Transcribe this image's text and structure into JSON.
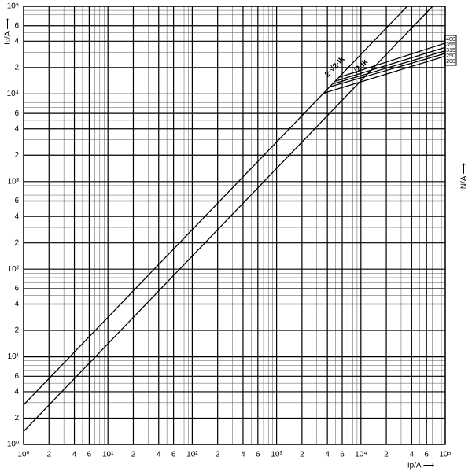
{
  "chart_data": {
    "type": "line",
    "x_label": "Ip/A ⟶",
    "y_label": "Ic/A ⟶",
    "y2_label": "IN/A ⟶",
    "log_x": true,
    "log_y": true,
    "grid": true,
    "minor_grid": true,
    "xlim": [
      1,
      100000
    ],
    "ylim": [
      1,
      100000
    ],
    "xticks": [
      {
        "value": 1,
        "label": "10⁰"
      },
      2,
      4,
      6,
      {
        "value": 10,
        "label": "10¹"
      },
      {
        "value": 20,
        "label": "2"
      },
      {
        "value": 40,
        "label": "4"
      },
      {
        "value": 60,
        "label": "6"
      },
      {
        "value": 100,
        "label": "10²"
      },
      {
        "value": 200,
        "label": "2"
      },
      {
        "value": 400,
        "label": "4"
      },
      {
        "value": 600,
        "label": "6"
      },
      {
        "value": 1000,
        "label": "10³"
      },
      {
        "value": 2000,
        "label": "2"
      },
      {
        "value": 4000,
        "label": "4"
      },
      {
        "value": 6000,
        "label": "6"
      },
      {
        "value": 10000,
        "label": "10⁴"
      },
      {
        "value": 20000,
        "label": "2"
      },
      {
        "value": 40000,
        "label": "4"
      },
      {
        "value": 60000,
        "label": "6"
      },
      {
        "value": 100000,
        "label": "10⁵"
      }
    ],
    "yticks": [
      {
        "value": 1,
        "label": "10⁰"
      },
      2,
      4,
      6,
      {
        "value": 10,
        "label": "10¹"
      },
      {
        "value": 20,
        "label": "2"
      },
      {
        "value": 40,
        "label": "4"
      },
      {
        "value": 60,
        "label": "6"
      },
      {
        "value": 100,
        "label": "10²"
      },
      {
        "value": 200,
        "label": "2"
      },
      {
        "value": 400,
        "label": "4"
      },
      {
        "value": 600,
        "label": "6"
      },
      {
        "value": 1000,
        "label": "10³"
      },
      {
        "value": 2000,
        "label": "2"
      },
      {
        "value": 4000,
        "label": "4"
      },
      {
        "value": 6000,
        "label": "6"
      },
      {
        "value": 10000,
        "label": "10⁴"
      },
      {
        "value": 20000,
        "label": "2"
      },
      {
        "value": 40000,
        "label": "4"
      },
      {
        "value": 60000,
        "label": "6"
      },
      {
        "value": 100000,
        "label": "10⁵"
      }
    ],
    "series": [
      {
        "name": "2·√2·Ik",
        "color": "#000000",
        "x": [
          1,
          35355
        ],
        "values": [
          2.83,
          100000
        ]
      },
      {
        "name": "√2·Ik",
        "color": "#000000",
        "x": [
          1,
          70711
        ],
        "values": [
          1.41,
          100000
        ]
      },
      {
        "name": "400",
        "color": "#000000",
        "x": [
          5500,
          100000
        ],
        "values": [
          15500,
          38000
        ]
      },
      {
        "name": "355",
        "color": "#000000",
        "x": [
          5000,
          100000
        ],
        "values": [
          14000,
          34000
        ]
      },
      {
        "name": "315",
        "color": "#000000",
        "x": [
          4600,
          100000
        ],
        "values": [
          13000,
          31000
        ]
      },
      {
        "name": "250",
        "color": "#000000",
        "x": [
          4200,
          100000
        ],
        "values": [
          12000,
          29000
        ]
      },
      {
        "name": "200",
        "color": "#000000",
        "x": [
          3600,
          100000
        ],
        "values": [
          10200,
          27000
        ]
      }
    ]
  }
}
